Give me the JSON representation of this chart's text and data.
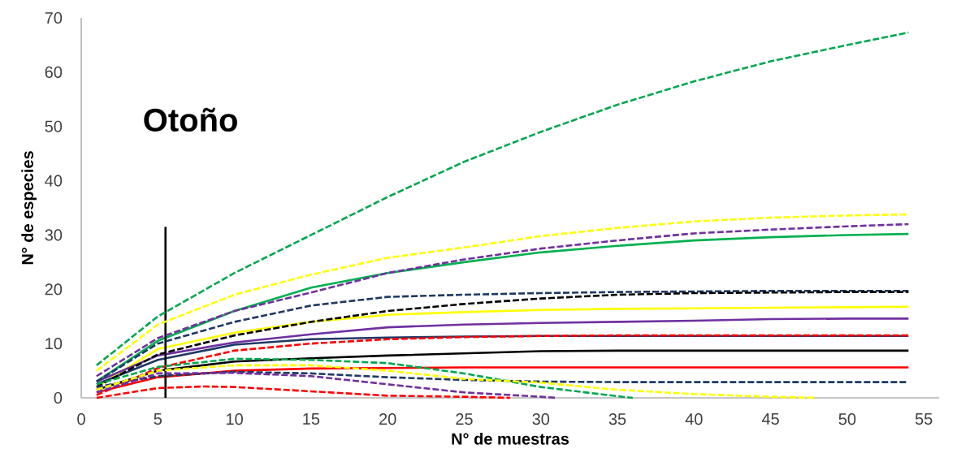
{
  "chart_data": {
    "type": "line",
    "title": "Otoño",
    "xlabel": "N° de muestras",
    "ylabel": "N° de especies",
    "xlim": [
      0,
      56
    ],
    "ylim": [
      0,
      70
    ],
    "xticks": [
      0,
      5,
      10,
      15,
      20,
      25,
      30,
      35,
      40,
      45,
      50,
      55
    ],
    "yticks": [
      0,
      10,
      20,
      30,
      40,
      50,
      60,
      70
    ],
    "series": [
      {
        "color": "#00a650",
        "line_style": "dashed",
        "x": [
          1,
          5,
          10,
          15,
          20,
          25,
          30,
          35,
          40,
          45,
          50,
          54
        ],
        "values": [
          6,
          15,
          23,
          30,
          37,
          43.5,
          49,
          54,
          58.3,
          62,
          65,
          67.3
        ]
      },
      {
        "color": "#ffff00",
        "line_style": "dashed",
        "x": [
          1,
          5,
          10,
          15,
          20,
          25,
          30,
          35,
          40,
          45,
          50,
          54
        ],
        "values": [
          5,
          13.5,
          19,
          22.7,
          25.8,
          27.7,
          29.8,
          31.3,
          32.5,
          33.2,
          33.6,
          33.8
        ]
      },
      {
        "color": "#7030a0",
        "line_style": "dashed",
        "x": [
          1,
          5,
          10,
          15,
          20,
          25,
          30,
          35,
          40,
          45,
          50,
          54
        ],
        "values": [
          4,
          11,
          16,
          19.4,
          23,
          25.5,
          27.5,
          29,
          30.3,
          31,
          31.6,
          32
        ]
      },
      {
        "color": "#00b050",
        "line_style": "solid",
        "x": [
          1,
          5,
          10,
          15,
          20,
          25,
          30,
          35,
          40,
          45,
          50,
          54
        ],
        "values": [
          3,
          10.5,
          16,
          20.3,
          23,
          25,
          26.8,
          28,
          29,
          29.6,
          30,
          30.2
        ]
      },
      {
        "color": "#1f3864",
        "line_style": "dashed",
        "x": [
          1,
          5,
          10,
          15,
          20,
          25,
          30,
          35,
          40,
          45,
          50,
          54
        ],
        "values": [
          3,
          10,
          14,
          17,
          18.6,
          19,
          19.3,
          19.5,
          19.6,
          19.7,
          19.7,
          19.7
        ]
      },
      {
        "color": "#000000",
        "line_style": "dashed",
        "x": [
          1,
          5,
          10,
          15,
          20,
          25,
          30,
          35,
          40,
          45,
          50,
          54
        ],
        "values": [
          2,
          8,
          11.5,
          14,
          16,
          17.3,
          18.3,
          19,
          19.3,
          19.4,
          19.5,
          19.5
        ]
      },
      {
        "color": "#ffff00",
        "line_style": "solid",
        "x": [
          1,
          5,
          10,
          15,
          20,
          25,
          30,
          35,
          40,
          45,
          50,
          54
        ],
        "values": [
          2,
          9,
          12,
          14,
          15.3,
          15.8,
          16.2,
          16.4,
          16.5,
          16.6,
          16.7,
          16.8
        ]
      },
      {
        "color": "#7030a0",
        "line_style": "solid",
        "x": [
          1,
          5,
          10,
          15,
          20,
          25,
          30,
          35,
          40,
          45,
          50,
          54
        ],
        "values": [
          3,
          7.8,
          10.2,
          11.7,
          13,
          13.5,
          13.8,
          14,
          14.2,
          14.5,
          14.6,
          14.6
        ]
      },
      {
        "color": "#1f3864",
        "line_style": "solid",
        "x": [
          1,
          5,
          10,
          15,
          20,
          25,
          30,
          35,
          40,
          45,
          50,
          54
        ],
        "values": [
          2.5,
          7,
          9.8,
          10.8,
          11.1,
          11.3,
          11.4,
          11.4,
          11.4,
          11.4,
          11.4,
          11.4
        ]
      },
      {
        "color": "#ff0000",
        "line_style": "dashed",
        "x": [
          1,
          5,
          10,
          15,
          20,
          25,
          30,
          35,
          40,
          45,
          50,
          54
        ],
        "values": [
          0.5,
          5.5,
          8.7,
          10,
          10.8,
          11.2,
          11.4,
          11.5,
          11.5,
          11.5,
          11.5,
          11.5
        ]
      },
      {
        "color": "#000000",
        "line_style": "solid",
        "x": [
          1,
          5,
          10,
          15,
          20,
          25,
          30,
          35,
          40,
          45,
          50,
          54
        ],
        "values": [
          1.5,
          5,
          6.7,
          7.3,
          7.8,
          8.2,
          8.6,
          8.7,
          8.7,
          8.7,
          8.7,
          8.7
        ]
      },
      {
        "color": "#ff0000",
        "line_style": "solid",
        "x": [
          1,
          5,
          10,
          15,
          20,
          25,
          30,
          35,
          40,
          45,
          50,
          54
        ],
        "values": [
          1,
          3.8,
          5,
          5.4,
          5.5,
          5.6,
          5.6,
          5.6,
          5.6,
          5.6,
          5.6,
          5.6
        ]
      },
      {
        "color": "#1f3864",
        "line_style": "dashed",
        "x": [
          1,
          5,
          10,
          15,
          20,
          25,
          30,
          35,
          40,
          45,
          50,
          54
        ],
        "values": [
          2,
          4,
          4.8,
          4.5,
          3.8,
          3.3,
          3,
          2.9,
          2.9,
          2.9,
          2.9,
          2.9
        ]
      },
      {
        "color": "#00a650",
        "line_style": "dashed",
        "x": [
          1,
          5,
          10,
          15,
          20,
          25,
          30,
          35,
          36
        ],
        "values": [
          2.5,
          5.7,
          7.2,
          7,
          6.4,
          4.5,
          2,
          0.3,
          0
        ]
      },
      {
        "color": "#ffff00",
        "line_style": "dashed",
        "x": [
          1,
          5,
          10,
          15,
          20,
          25,
          30,
          35,
          40,
          45,
          48
        ],
        "values": [
          1.5,
          5,
          6,
          6,
          5,
          3.5,
          2.8,
          1.5,
          0.7,
          0.2,
          0
        ]
      },
      {
        "color": "#7030a0",
        "line_style": "dashed",
        "x": [
          1,
          5,
          10,
          15,
          20,
          25,
          30,
          31
        ],
        "values": [
          1,
          4.5,
          4.6,
          4,
          2.5,
          1,
          0.2,
          0
        ]
      },
      {
        "color": "#ff0000",
        "line_style": "dashed",
        "x": [
          1,
          5,
          8,
          10,
          15,
          20,
          25,
          28
        ],
        "values": [
          0,
          1.8,
          2.1,
          2,
          1.2,
          0.4,
          0.2,
          0
        ]
      },
      {
        "color": "#000000",
        "line_style": "solid",
        "x": [
          5.5,
          5.5
        ],
        "values": [
          0,
          31.5
        ]
      }
    ]
  }
}
